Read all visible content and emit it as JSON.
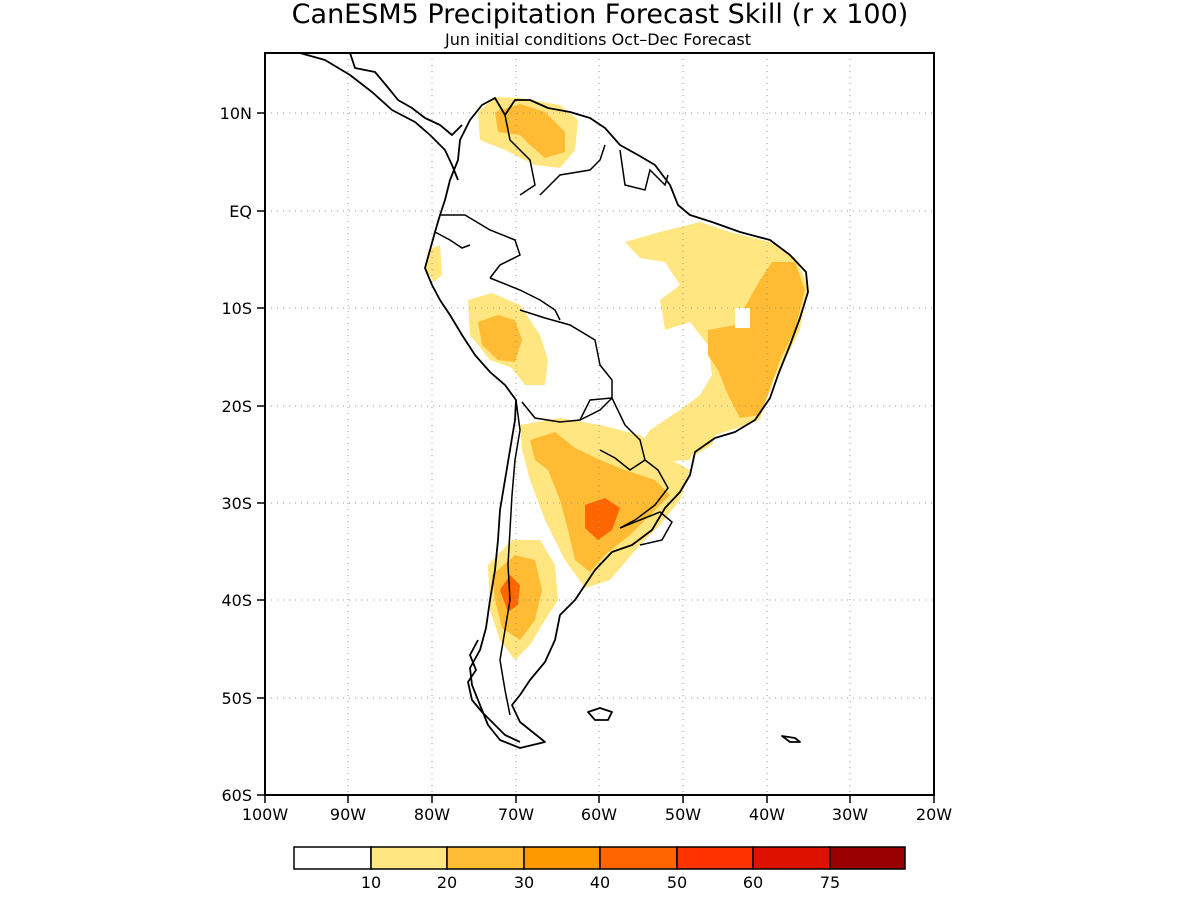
{
  "title": "CanESM5 Precipitation Forecast Skill (r x 100)",
  "subtitle": "Jun initial conditions  Oct–Dec Forecast",
  "axes": {
    "lat_labels": [
      "10N",
      "EQ",
      "10S",
      "20S",
      "30S",
      "40S",
      "50S",
      "60S"
    ],
    "lon_labels": [
      "100W",
      "90W",
      "80W",
      "70W",
      "60W",
      "50W",
      "40W",
      "30W",
      "20W"
    ],
    "lat_range": [
      -60,
      15
    ],
    "lon_range": [
      -100,
      -20
    ],
    "grid": true
  },
  "colorbar": {
    "colors": [
      "#ffffff",
      "#ffe680",
      "#ffbb33",
      "#ff9900",
      "#ff6600",
      "#ff3300",
      "#dd1100",
      "#990000"
    ],
    "labels": [
      "10",
      "20",
      "30",
      "40",
      "50",
      "60",
      "75"
    ]
  },
  "skill_regions": [
    {
      "name": "northern-venezuela-colombia",
      "level": 1
    },
    {
      "name": "venezuela-core",
      "level": 2
    },
    {
      "name": "ecuador-coast",
      "level": 1
    },
    {
      "name": "northeast-brazil",
      "level": 1
    },
    {
      "name": "northeast-brazil-core",
      "level": 2
    },
    {
      "name": "peru-andes",
      "level": 1
    },
    {
      "name": "peru-andes-core",
      "level": 2
    },
    {
      "name": "southern-brazil",
      "level": 1
    },
    {
      "name": "chaco-argentina",
      "level": 1
    },
    {
      "name": "chaco-argentina-core",
      "level": 2
    },
    {
      "name": "uruguay-pampas-max",
      "level": 4
    },
    {
      "name": "chile-argentina-patagonia",
      "level": 1
    },
    {
      "name": "patagonia-core",
      "level": 2
    },
    {
      "name": "patagonia-max",
      "level": 4
    }
  ]
}
